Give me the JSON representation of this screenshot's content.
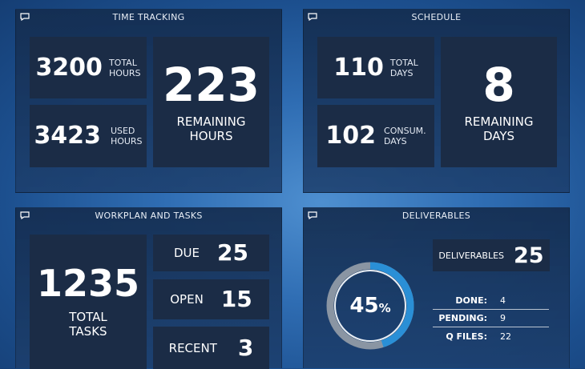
{
  "time_tracking": {
    "title": "TIME TRACKING",
    "total_hours": {
      "value": "3200",
      "label_1": "TOTAL",
      "label_2": "HOURS"
    },
    "used_hours": {
      "value": "3423",
      "label_1": "USED",
      "label_2": "HOURS"
    },
    "remaining_hours": {
      "value": "223",
      "label_1": "REMAINING",
      "label_2": "HOURS"
    }
  },
  "schedule": {
    "title": "SCHEDULE",
    "total_days": {
      "value": "110",
      "label_1": "TOTAL",
      "label_2": "DAYS"
    },
    "consumed_days": {
      "value": "102",
      "label_1": "CONSUM.",
      "label_2": "DAYS"
    },
    "remaining_days": {
      "value": "8",
      "label_1": "REMAINING",
      "label_2": "DAYS"
    }
  },
  "workplan": {
    "title": "WORKPLAN AND TASKS",
    "total_tasks": {
      "value": "1235",
      "label_1": "TOTAL",
      "label_2": "TASKS"
    },
    "due": {
      "label": "DUE",
      "value": "25"
    },
    "open": {
      "label": "OPEN",
      "value": "15"
    },
    "recent": {
      "label": "RECENT",
      "value": "3"
    }
  },
  "deliverables": {
    "title": "DELIVERABLES",
    "progress_percent": 45,
    "progress_value": "45",
    "progress_unit": "%",
    "count_label": "DELIVERABLES",
    "count_value": "25",
    "stats": [
      {
        "key": "DONE:",
        "value": "4"
      },
      {
        "key": "PENDING:",
        "value": "9"
      },
      {
        "key": "Q FILES:",
        "value": "22"
      }
    ]
  },
  "colors": {
    "ring_progress": "#2a8fd6",
    "ring_track": "#8a95a3",
    "tile_bg": "#1b2c46"
  },
  "icons": {
    "panel_header": "chat-bubble-icon"
  }
}
